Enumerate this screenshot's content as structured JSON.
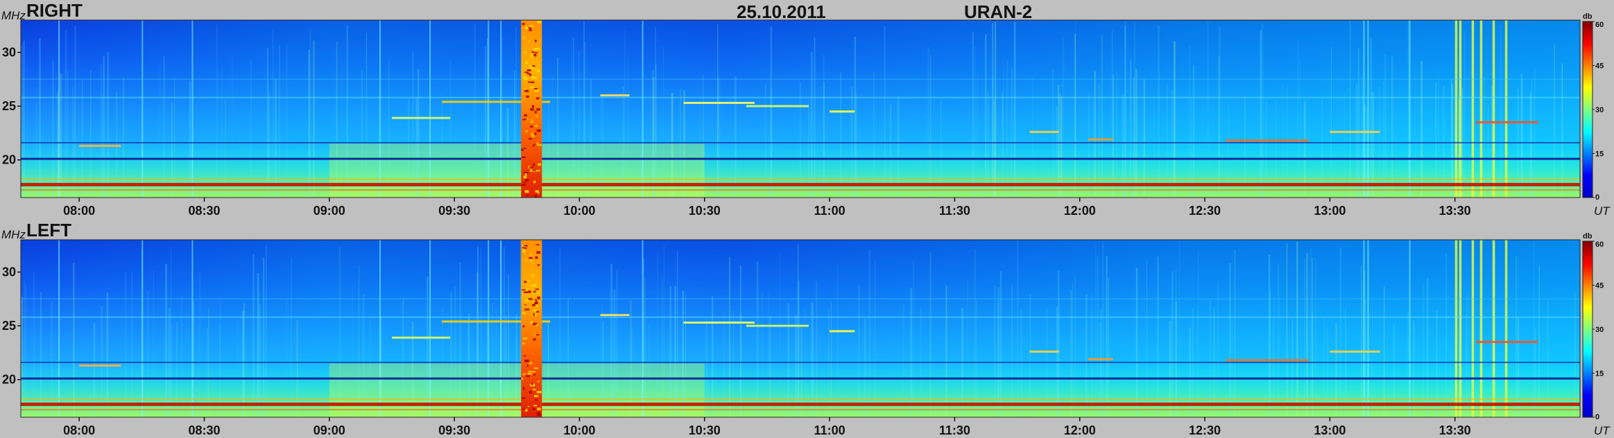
{
  "header": {
    "date": "25.10.2011",
    "instrument": "URAN-2"
  },
  "chart_data": {
    "type": "heatmap",
    "x_unit": "UT",
    "y_unit": "MHz",
    "ylim": [
      16.5,
      33
    ],
    "xlim": [
      "07:46",
      "14:00"
    ],
    "x_ticks": [
      "08:00",
      "08:30",
      "09:00",
      "09:30",
      "10:00",
      "10:30",
      "11:00",
      "11:30",
      "12:00",
      "12:30",
      "13:00",
      "13:30"
    ],
    "y_ticks": [
      20,
      25,
      30
    ],
    "colorbar": {
      "unit": "db",
      "range": [
        0,
        60
      ],
      "ticks": [
        0,
        15,
        30,
        45,
        60
      ]
    },
    "panels": [
      {
        "label": "RIGHT"
      },
      {
        "label": "LEFT"
      }
    ]
  },
  "colors": {
    "background": "#c0c0c0",
    "text": "#111111"
  }
}
